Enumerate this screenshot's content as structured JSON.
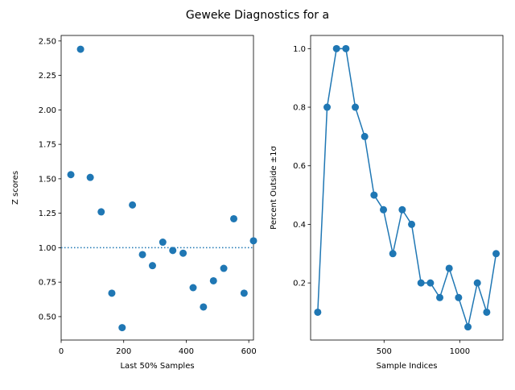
{
  "figure": {
    "title": "Geweke Diagnostics for a"
  },
  "colors": {
    "series": "#1f77b4",
    "axis": "#000000"
  },
  "chart_data": [
    {
      "type": "scatter",
      "xlabel": "Last 50% Samples",
      "ylabel": "Z scores",
      "xlim": [
        0,
        615
      ],
      "ylim": [
        0.33,
        2.54
      ],
      "xticks": [
        0,
        200,
        400,
        600
      ],
      "yticks": [
        0.5,
        0.75,
        1.0,
        1.25,
        1.5,
        1.75,
        2.0,
        2.25,
        2.5
      ],
      "reference_line": {
        "y": 1.0,
        "style": "dotted"
      },
      "x": [
        31,
        62,
        93,
        128,
        162,
        195,
        228,
        260,
        292,
        325,
        357,
        390,
        422,
        455,
        487,
        520,
        552,
        585,
        615
      ],
      "y": [
        1.53,
        2.44,
        1.51,
        1.26,
        0.67,
        0.42,
        1.31,
        0.95,
        0.87,
        1.04,
        0.98,
        0.96,
        0.71,
        0.57,
        0.76,
        0.85,
        1.21,
        0.67,
        1.05
      ]
    },
    {
      "type": "line",
      "xlabel": "Sample Indices",
      "ylabel": "Percent Outside ±1σ",
      "xlim": [
        15,
        1285
      ],
      "ylim": [
        0.005,
        1.045
      ],
      "xticks": [
        500,
        1000
      ],
      "yticks": [
        0.2,
        0.4,
        0.6,
        0.8,
        1.0
      ],
      "x": [
        62,
        124,
        186,
        248,
        310,
        372,
        434,
        496,
        558,
        620,
        682,
        744,
        806,
        868,
        930,
        992,
        1054,
        1116,
        1178,
        1240
      ],
      "y": [
        0.1,
        0.8,
        1.0,
        1.0,
        0.8,
        0.7,
        0.5,
        0.45,
        0.3,
        0.45,
        0.4,
        0.2,
        0.2,
        0.15,
        0.25,
        0.15,
        0.05,
        0.2,
        0.1,
        0.3
      ]
    }
  ]
}
